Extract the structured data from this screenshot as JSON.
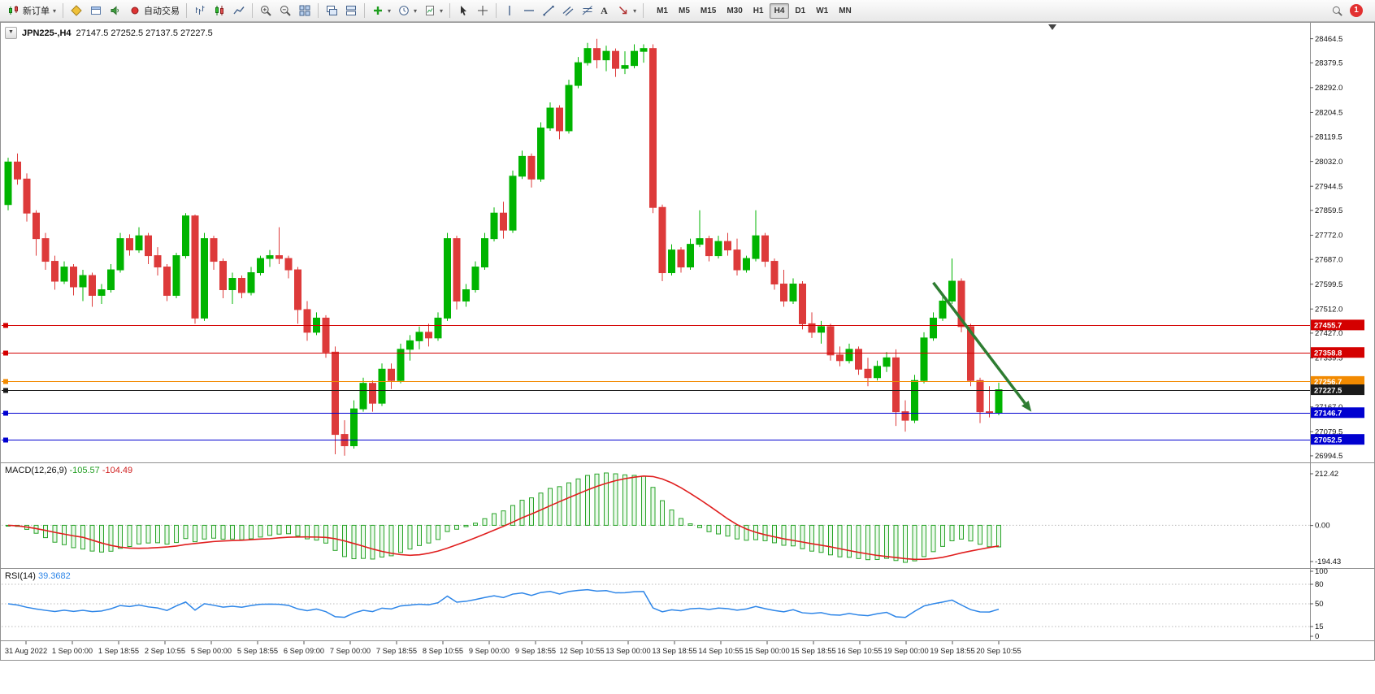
{
  "toolbar": {
    "new_order_label": "新订单",
    "auto_trading_label": "自动交易",
    "text_tool_label": "A",
    "timeframes": [
      "M1",
      "M5",
      "M15",
      "M30",
      "H1",
      "H4",
      "D1",
      "W1",
      "MN"
    ],
    "active_timeframe": "H4",
    "notification_badge": "1"
  },
  "quote": {
    "symbol_period": "JPN225-,H4",
    "ohlc_text": "27147.5 27252.5 27137.5 27227.5"
  },
  "indicators": {
    "macd": {
      "name": "MACD(12,26,9)",
      "main_value": "-105.57",
      "signal_value": "-104.49",
      "axis_labels": [
        "212.42",
        "0.00",
        "-194.43"
      ]
    },
    "rsi": {
      "name": "RSI(14)",
      "value": "39.3682",
      "axis_labels": [
        "100",
        "80",
        "50",
        "15",
        "0"
      ],
      "levels": [
        80,
        50,
        15
      ]
    }
  },
  "chart_data": {
    "type": "candlestick",
    "title": "JPN225-,H4",
    "symbol": "JPN225-",
    "timeframe": "H4",
    "current_bar": {
      "open": 27147.5,
      "high": 27252.5,
      "low": 27137.5,
      "close": 27227.5
    },
    "y_range": [
      26980,
      28515
    ],
    "y_axis_labels": [
      "28464.5",
      "28379.5",
      "28292.0",
      "28204.5",
      "28119.5",
      "28032.0",
      "27944.5",
      "27859.5",
      "27772.0",
      "27687.0",
      "27599.5",
      "27512.0",
      "27427.0",
      "27339.5",
      "27167.0",
      "27079.5",
      "26994.5"
    ],
    "x_labels": [
      "31 Aug 2022",
      "1 Sep 00:00",
      "1 Sep 18:55",
      "2 Sep 10:55",
      "5 Sep 00:00",
      "5 Sep 18:55",
      "6 Sep 09:00",
      "7 Sep 00:00",
      "7 Sep 18:55",
      "8 Sep 10:55",
      "9 Sep 00:00",
      "9 Sep 18:55",
      "12 Sep 10:55",
      "13 Sep 00:00",
      "13 Sep 18:55",
      "14 Sep 10:55",
      "15 Sep 00:00",
      "15 Sep 18:55",
      "16 Sep 10:55",
      "19 Sep 00:00",
      "19 Sep 18:55",
      "20 Sep 10:55"
    ],
    "h_lines": [
      {
        "price": 27455.7,
        "label": "27455.7",
        "color": "#D40000"
      },
      {
        "price": 27358.8,
        "label": "27358.8",
        "color": "#D40000"
      },
      {
        "price": 27256.7,
        "label": "27256.7",
        "color": "#F28A00"
      },
      {
        "price": 27227.5,
        "label": "27227.5",
        "color": "#1A1A1A",
        "style": "current-price"
      },
      {
        "price": 27146.7,
        "label": "27146.7",
        "color": "#0000D0"
      },
      {
        "price": 27052.5,
        "label": "27052.5",
        "color": "#0000D0"
      }
    ],
    "arrow": {
      "bar_from": 99,
      "price_from": 27605,
      "bar_to": 109.5,
      "price_to": 27150,
      "color": "#2E7D32"
    },
    "colors": {
      "bull": "#00B400",
      "bear": "#DD3A3A",
      "macd_hist": "#27A327",
      "macd_signal": "#E01F1F",
      "rsi_line": "#2E86E8",
      "grid": "#BBBBBB"
    },
    "candles": [
      [
        27880,
        28045,
        27860,
        28030
      ],
      [
        28030,
        28060,
        27950,
        27970
      ],
      [
        27970,
        27990,
        27820,
        27850
      ],
      [
        27850,
        27860,
        27700,
        27760
      ],
      [
        27760,
        27780,
        27650,
        27680
      ],
      [
        27680,
        27700,
        27580,
        27610
      ],
      [
        27610,
        27680,
        27600,
        27660
      ],
      [
        27660,
        27670,
        27560,
        27590
      ],
      [
        27590,
        27650,
        27540,
        27630
      ],
      [
        27630,
        27640,
        27520,
        27560
      ],
      [
        27560,
        27600,
        27530,
        27580
      ],
      [
        27580,
        27670,
        27570,
        27650
      ],
      [
        27650,
        27780,
        27640,
        27760
      ],
      [
        27760,
        27775,
        27700,
        27720
      ],
      [
        27720,
        27800,
        27710,
        27770
      ],
      [
        27770,
        27780,
        27670,
        27700
      ],
      [
        27700,
        27730,
        27630,
        27660
      ],
      [
        27660,
        27670,
        27540,
        27560
      ],
      [
        27560,
        27710,
        27550,
        27700
      ],
      [
        27700,
        27850,
        27690,
        27840
      ],
      [
        27840,
        27845,
        27460,
        27480
      ],
      [
        27480,
        27780,
        27470,
        27760
      ],
      [
        27760,
        27770,
        27650,
        27680
      ],
      [
        27680,
        27690,
        27550,
        27580
      ],
      [
        27580,
        27640,
        27530,
        27620
      ],
      [
        27620,
        27630,
        27550,
        27570
      ],
      [
        27570,
        27660,
        27560,
        27640
      ],
      [
        27640,
        27700,
        27630,
        27690
      ],
      [
        27690,
        27720,
        27660,
        27700
      ],
      [
        27700,
        27800,
        27670,
        27690
      ],
      [
        27690,
        27700,
        27620,
        27650
      ],
      [
        27650,
        27660,
        27460,
        27510
      ],
      [
        27510,
        27540,
        27400,
        27430
      ],
      [
        27430,
        27500,
        27420,
        27480
      ],
      [
        27480,
        27490,
        27340,
        27360
      ],
      [
        27360,
        27380,
        27000,
        27070
      ],
      [
        27070,
        27120,
        26995,
        27030
      ],
      [
        27030,
        27190,
        27020,
        27160
      ],
      [
        27160,
        27270,
        27150,
        27250
      ],
      [
        27250,
        27260,
        27150,
        27180
      ],
      [
        27180,
        27320,
        27170,
        27300
      ],
      [
        27300,
        27320,
        27230,
        27260
      ],
      [
        27260,
        27390,
        27250,
        27370
      ],
      [
        27370,
        27420,
        27330,
        27400
      ],
      [
        27400,
        27450,
        27370,
        27430
      ],
      [
        27430,
        27460,
        27380,
        27410
      ],
      [
        27410,
        27500,
        27400,
        27480
      ],
      [
        27480,
        27780,
        27470,
        27760
      ],
      [
        27760,
        27770,
        27510,
        27540
      ],
      [
        27540,
        27600,
        27520,
        27580
      ],
      [
        27580,
        27680,
        27570,
        27660
      ],
      [
        27660,
        27780,
        27650,
        27760
      ],
      [
        27760,
        27870,
        27750,
        27850
      ],
      [
        27850,
        27890,
        27760,
        27790
      ],
      [
        27790,
        28000,
        27780,
        27980
      ],
      [
        27980,
        28070,
        27970,
        28050
      ],
      [
        28050,
        28060,
        27940,
        27970
      ],
      [
        27970,
        28170,
        27960,
        28150
      ],
      [
        28150,
        28240,
        28140,
        28220
      ],
      [
        28220,
        28230,
        28110,
        28140
      ],
      [
        28140,
        28320,
        28130,
        28300
      ],
      [
        28300,
        28400,
        28290,
        28380
      ],
      [
        28380,
        28450,
        28370,
        28430
      ],
      [
        28430,
        28464,
        28360,
        28390
      ],
      [
        28390,
        28440,
        28350,
        28420
      ],
      [
        28420,
        28430,
        28330,
        28360
      ],
      [
        28360,
        28420,
        28340,
        28370
      ],
      [
        28370,
        28445,
        28360,
        28420
      ],
      [
        28420,
        28445,
        28380,
        28430
      ],
      [
        28430,
        28445,
        27850,
        27870
      ],
      [
        27870,
        27880,
        27610,
        27640
      ],
      [
        27640,
        27740,
        27630,
        27720
      ],
      [
        27720,
        27730,
        27640,
        27660
      ],
      [
        27660,
        27760,
        27650,
        27740
      ],
      [
        27740,
        27860,
        27730,
        27760
      ],
      [
        27760,
        27770,
        27680,
        27700
      ],
      [
        27700,
        27770,
        27690,
        27750
      ],
      [
        27750,
        27780,
        27700,
        27720
      ],
      [
        27720,
        27760,
        27630,
        27650
      ],
      [
        27650,
        27700,
        27640,
        27690
      ],
      [
        27690,
        27860,
        27680,
        27770
      ],
      [
        27770,
        27780,
        27660,
        27680
      ],
      [
        27680,
        27690,
        27580,
        27600
      ],
      [
        27600,
        27650,
        27520,
        27540
      ],
      [
        27540,
        27620,
        27530,
        27600
      ],
      [
        27600,
        27610,
        27440,
        27460
      ],
      [
        27460,
        27500,
        27410,
        27430
      ],
      [
        27430,
        27470,
        27390,
        27450
      ],
      [
        27450,
        27460,
        27330,
        27350
      ],
      [
        27350,
        27380,
        27310,
        27330
      ],
      [
        27330,
        27390,
        27320,
        27370
      ],
      [
        27370,
        27380,
        27280,
        27300
      ],
      [
        27300,
        27340,
        27240,
        27270
      ],
      [
        27270,
        27330,
        27260,
        27310
      ],
      [
        27310,
        27360,
        27290,
        27340
      ],
      [
        27340,
        27370,
        27100,
        27150
      ],
      [
        27150,
        27190,
        27080,
        27120
      ],
      [
        27120,
        27280,
        27110,
        27260
      ],
      [
        27260,
        27430,
        27250,
        27410
      ],
      [
        27410,
        27500,
        27400,
        27480
      ],
      [
        27480,
        27560,
        27470,
        27540
      ],
      [
        27540,
        27690,
        27530,
        27610
      ],
      [
        27610,
        27620,
        27430,
        27450
      ],
      [
        27450,
        27460,
        27240,
        27260
      ],
      [
        27260,
        27270,
        27110,
        27150
      ],
      [
        27150,
        27240,
        27130,
        27145
      ],
      [
        27147.5,
        27252.5,
        27137.5,
        27227.5
      ]
    ]
  }
}
